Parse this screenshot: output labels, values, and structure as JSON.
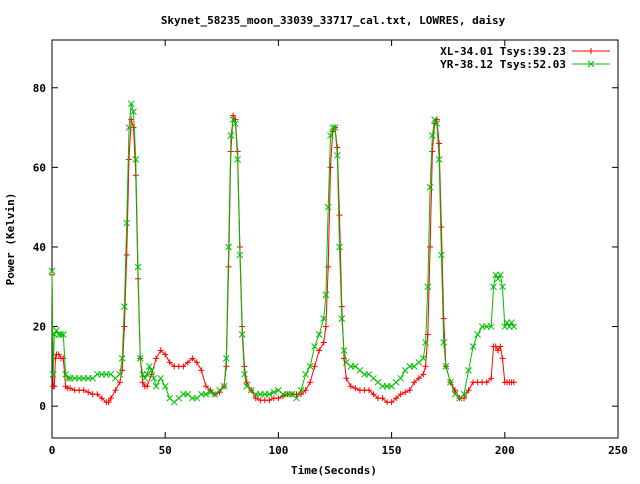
{
  "chart_data": {
    "type": "line",
    "title": "Skynet_58235_moon_33039_33717_cal.txt, LOWRES, daisy",
    "xlabel": "Time(Seconds)",
    "ylabel": "Power (Kelvin)",
    "xlim": [
      0,
      250
    ],
    "ylim": [
      -8,
      92
    ],
    "xticks": [
      0,
      50,
      100,
      150,
      200,
      250
    ],
    "yticks": [
      0,
      20,
      40,
      60,
      80
    ],
    "grid": false,
    "legend_position": "top-right",
    "series": [
      {
        "name": "XL-34.01 Tsys:39.23",
        "color": "#ff0000",
        "marker": "plus",
        "points": [
          [
            0,
            33
          ],
          [
            0.5,
            5
          ],
          [
            1,
            5
          ],
          [
            1.5,
            12
          ],
          [
            2,
            13
          ],
          [
            3,
            13
          ],
          [
            4,
            12
          ],
          [
            5,
            12
          ],
          [
            6,
            5
          ],
          [
            7,
            4.5
          ],
          [
            8,
            4.5
          ],
          [
            10,
            4
          ],
          [
            12,
            4
          ],
          [
            14,
            4
          ],
          [
            16,
            3.5
          ],
          [
            18,
            3
          ],
          [
            20,
            3
          ],
          [
            22,
            2
          ],
          [
            24,
            1
          ],
          [
            25,
            1
          ],
          [
            26,
            2
          ],
          [
            28,
            4
          ],
          [
            30,
            6
          ],
          [
            31,
            9
          ],
          [
            32,
            20
          ],
          [
            33,
            38
          ],
          [
            34,
            62
          ],
          [
            35,
            72
          ],
          [
            36,
            70
          ],
          [
            37,
            58
          ],
          [
            38,
            32
          ],
          [
            39,
            12
          ],
          [
            40,
            6
          ],
          [
            41,
            5
          ],
          [
            42,
            5
          ],
          [
            44,
            8
          ],
          [
            46,
            12
          ],
          [
            48,
            14
          ],
          [
            50,
            13
          ],
          [
            52,
            11
          ],
          [
            54,
            10
          ],
          [
            56,
            10
          ],
          [
            58,
            10
          ],
          [
            60,
            11
          ],
          [
            62,
            12
          ],
          [
            64,
            11
          ],
          [
            66,
            9
          ],
          [
            68,
            5
          ],
          [
            70,
            4
          ],
          [
            72,
            3
          ],
          [
            74,
            3.5
          ],
          [
            76,
            5
          ],
          [
            77,
            10
          ],
          [
            78,
            35
          ],
          [
            79,
            64
          ],
          [
            80,
            73
          ],
          [
            81,
            72
          ],
          [
            82,
            64
          ],
          [
            83,
            40
          ],
          [
            84,
            20
          ],
          [
            85,
            10
          ],
          [
            86,
            6
          ],
          [
            88,
            4
          ],
          [
            90,
            2
          ],
          [
            92,
            1.5
          ],
          [
            94,
            1.5
          ],
          [
            96,
            1.5
          ],
          [
            98,
            2
          ],
          [
            100,
            2
          ],
          [
            102,
            2.5
          ],
          [
            104,
            3
          ],
          [
            106,
            3
          ],
          [
            108,
            3
          ],
          [
            110,
            3
          ],
          [
            112,
            4
          ],
          [
            114,
            6
          ],
          [
            116,
            10
          ],
          [
            118,
            14
          ],
          [
            120,
            16
          ],
          [
            121,
            20
          ],
          [
            122,
            35
          ],
          [
            123,
            60
          ],
          [
            124,
            69
          ],
          [
            125,
            70
          ],
          [
            126,
            65
          ],
          [
            127,
            48
          ],
          [
            128,
            25
          ],
          [
            129,
            12
          ],
          [
            130,
            7
          ],
          [
            132,
            5
          ],
          [
            134,
            4.5
          ],
          [
            136,
            4
          ],
          [
            138,
            4
          ],
          [
            140,
            4
          ],
          [
            142,
            3
          ],
          [
            144,
            2
          ],
          [
            146,
            2
          ],
          [
            148,
            1
          ],
          [
            150,
            1
          ],
          [
            152,
            2
          ],
          [
            154,
            3
          ],
          [
            156,
            3.5
          ],
          [
            158,
            4
          ],
          [
            160,
            6
          ],
          [
            162,
            7
          ],
          [
            164,
            8
          ],
          [
            165,
            10
          ],
          [
            166,
            18
          ],
          [
            167,
            40
          ],
          [
            168,
            64
          ],
          [
            169,
            71
          ],
          [
            170,
            72
          ],
          [
            171,
            66
          ],
          [
            172,
            45
          ],
          [
            173,
            22
          ],
          [
            174,
            10
          ],
          [
            176,
            6
          ],
          [
            178,
            4
          ],
          [
            180,
            2
          ],
          [
            182,
            2
          ],
          [
            184,
            4
          ],
          [
            186,
            6
          ],
          [
            188,
            6
          ],
          [
            190,
            6
          ],
          [
            192,
            6
          ],
          [
            194,
            7
          ],
          [
            195,
            15
          ],
          [
            196,
            15
          ],
          [
            197,
            14
          ],
          [
            198,
            15
          ],
          [
            199,
            12
          ],
          [
            200,
            6
          ],
          [
            201,
            6
          ],
          [
            202,
            6
          ],
          [
            203,
            6
          ],
          [
            204,
            6
          ]
        ]
      },
      {
        "name": "YR-38.12 Tsys:52.03",
        "color": "#00c000",
        "marker": "cross",
        "points": [
          [
            0,
            34
          ],
          [
            0.5,
            8
          ],
          [
            1,
            18
          ],
          [
            2,
            19
          ],
          [
            3,
            18
          ],
          [
            4,
            18
          ],
          [
            5,
            18
          ],
          [
            6,
            8
          ],
          [
            7,
            7
          ],
          [
            8,
            7
          ],
          [
            10,
            7
          ],
          [
            12,
            7
          ],
          [
            14,
            7
          ],
          [
            16,
            7
          ],
          [
            18,
            7
          ],
          [
            20,
            8
          ],
          [
            22,
            8
          ],
          [
            24,
            8
          ],
          [
            26,
            8
          ],
          [
            28,
            7
          ],
          [
            30,
            8
          ],
          [
            31,
            12
          ],
          [
            32,
            25
          ],
          [
            33,
            46
          ],
          [
            34,
            70
          ],
          [
            35,
            76
          ],
          [
            36,
            74
          ],
          [
            37,
            62
          ],
          [
            38,
            35
          ],
          [
            39,
            12
          ],
          [
            40,
            8
          ],
          [
            41,
            7
          ],
          [
            42,
            8
          ],
          [
            43,
            10
          ],
          [
            44,
            9
          ],
          [
            45,
            7
          ],
          [
            46,
            5
          ],
          [
            48,
            7
          ],
          [
            50,
            5
          ],
          [
            52,
            2
          ],
          [
            54,
            1
          ],
          [
            56,
            2
          ],
          [
            58,
            3
          ],
          [
            60,
            3
          ],
          [
            62,
            2
          ],
          [
            64,
            2
          ],
          [
            66,
            3
          ],
          [
            68,
            3
          ],
          [
            70,
            3.5
          ],
          [
            72,
            3
          ],
          [
            74,
            4
          ],
          [
            76,
            5
          ],
          [
            77,
            12
          ],
          [
            78,
            40
          ],
          [
            79,
            68
          ],
          [
            80,
            72
          ],
          [
            81,
            71
          ],
          [
            82,
            62
          ],
          [
            83,
            38
          ],
          [
            84,
            18
          ],
          [
            85,
            8
          ],
          [
            86,
            5
          ],
          [
            88,
            4
          ],
          [
            90,
            3
          ],
          [
            92,
            3
          ],
          [
            94,
            3
          ],
          [
            96,
            3
          ],
          [
            98,
            3.5
          ],
          [
            100,
            4
          ],
          [
            102,
            3
          ],
          [
            104,
            3
          ],
          [
            106,
            3
          ],
          [
            108,
            2
          ],
          [
            110,
            4
          ],
          [
            112,
            8
          ],
          [
            114,
            10
          ],
          [
            116,
            15
          ],
          [
            118,
            18
          ],
          [
            120,
            22
          ],
          [
            121,
            28
          ],
          [
            122,
            50
          ],
          [
            123,
            68
          ],
          [
            124,
            70
          ],
          [
            125,
            70
          ],
          [
            126,
            63
          ],
          [
            127,
            40
          ],
          [
            128,
            22
          ],
          [
            129,
            14
          ],
          [
            130,
            11
          ],
          [
            132,
            10
          ],
          [
            134,
            10
          ],
          [
            136,
            9
          ],
          [
            138,
            8
          ],
          [
            140,
            8
          ],
          [
            142,
            7
          ],
          [
            144,
            6
          ],
          [
            146,
            5
          ],
          [
            148,
            5
          ],
          [
            150,
            5
          ],
          [
            152,
            6
          ],
          [
            154,
            7
          ],
          [
            156,
            9
          ],
          [
            158,
            10
          ],
          [
            160,
            10
          ],
          [
            162,
            11
          ],
          [
            164,
            12
          ],
          [
            165,
            16
          ],
          [
            166,
            30
          ],
          [
            167,
            55
          ],
          [
            168,
            68
          ],
          [
            169,
            72
          ],
          [
            170,
            71
          ],
          [
            171,
            62
          ],
          [
            172,
            38
          ],
          [
            173,
            16
          ],
          [
            174,
            10
          ],
          [
            176,
            6
          ],
          [
            178,
            3
          ],
          [
            180,
            2
          ],
          [
            182,
            3
          ],
          [
            184,
            9
          ],
          [
            186,
            15
          ],
          [
            188,
            18
          ],
          [
            190,
            20
          ],
          [
            192,
            20
          ],
          [
            194,
            20
          ],
          [
            195,
            30
          ],
          [
            196,
            33
          ],
          [
            197,
            32
          ],
          [
            198,
            33
          ],
          [
            199,
            30
          ],
          [
            200,
            20
          ],
          [
            201,
            21
          ],
          [
            202,
            20
          ],
          [
            203,
            21
          ],
          [
            204,
            20
          ]
        ]
      }
    ]
  }
}
